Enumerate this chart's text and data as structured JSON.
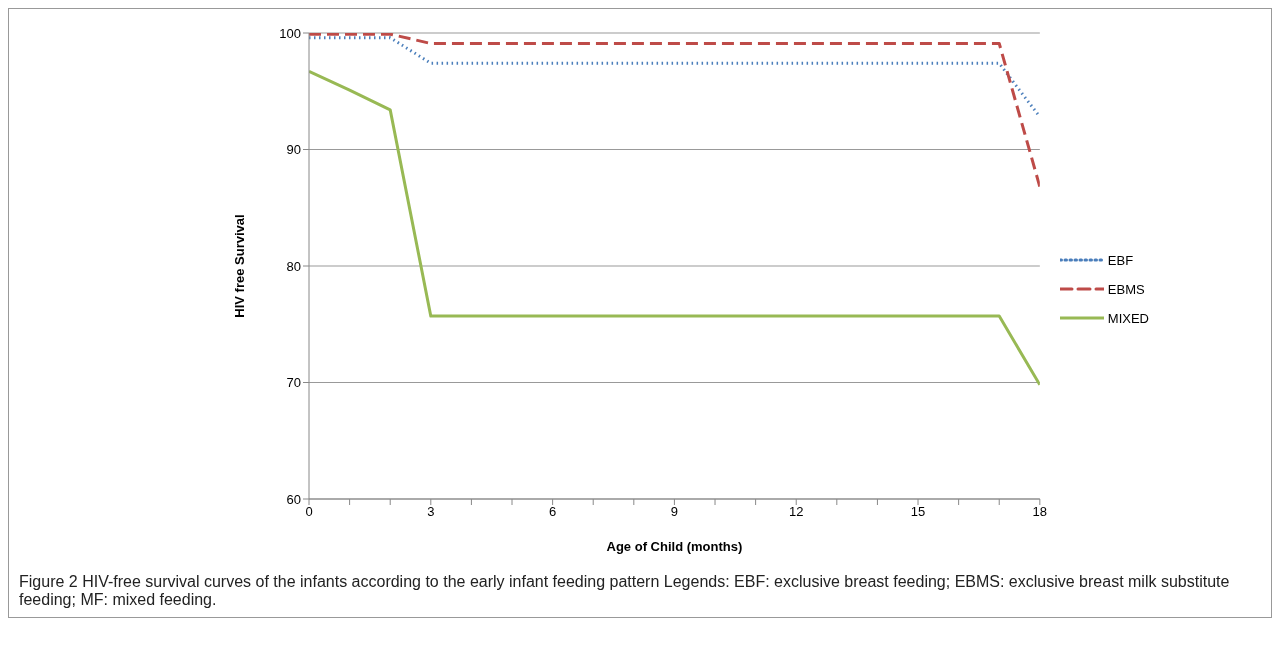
{
  "chart_data": {
    "type": "line",
    "xlabel": "Age of Child (months)",
    "ylabel": "HIV free Survival",
    "x": [
      0,
      1,
      2,
      3,
      17,
      18
    ],
    "series": [
      {
        "name": "EBF",
        "color": "#4a7ebb",
        "line_style": "dotted",
        "values": [
          99.6,
          99.6,
          99.6,
          97.4,
          97.4,
          92.8
        ]
      },
      {
        "name": "EBMS",
        "color": "#be4b48",
        "line_style": "dashed",
        "values": [
          99.9,
          99.9,
          99.9,
          99.1,
          99.1,
          86.8
        ]
      },
      {
        "name": "MIXED",
        "color": "#98b954",
        "line_style": "solid",
        "values": [
          96.7,
          95.1,
          93.4,
          75.7,
          75.7,
          69.8
        ]
      }
    ],
    "xlim": [
      0,
      18
    ],
    "xticks": [
      0,
      {
        "value": 1,
        "label": null
      },
      {
        "value": 2,
        "label": null
      },
      3,
      {
        "value": 4,
        "label": null
      },
      {
        "value": 5,
        "label": null
      },
      6,
      {
        "value": 7,
        "label": null
      },
      {
        "value": 8,
        "label": null
      },
      9,
      {
        "value": 10,
        "label": null
      },
      {
        "value": 11,
        "label": null
      },
      12,
      {
        "value": 13,
        "label": null
      },
      {
        "value": 14,
        "label": null
      },
      15,
      {
        "value": 16,
        "label": null
      },
      {
        "value": 17,
        "label": null
      },
      18
    ],
    "ylim": [
      60,
      100
    ],
    "yticks": [
      60,
      70,
      80,
      90,
      100
    ],
    "grid": "y",
    "legend": "right",
    "marker": "none",
    "annotations": [
      "Figure 2 HIV-free survival curves of the infants according to the early infant feeding pattern Legends: EBF: exclusive breast feeding; EBMS: exclusive breast milk substitute feeding; MF: mixed feeding."
    ]
  }
}
